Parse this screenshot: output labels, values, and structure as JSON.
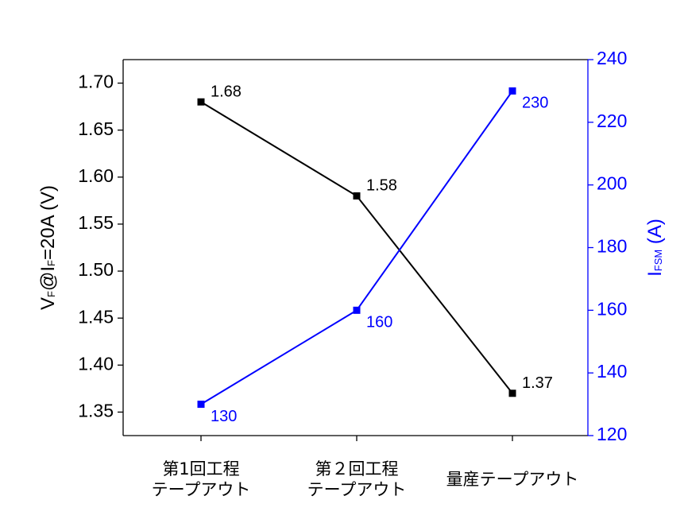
{
  "chart_data": {
    "type": "line",
    "categories": [
      "第1回工程\nテープアウト",
      "第２回工程\nテープアウト",
      "量産テープアウト"
    ],
    "ylabel_parts": [
      {
        "text": "V"
      },
      {
        "text": "F",
        "sub": true
      },
      {
        "text": "@I"
      },
      {
        "text": "F",
        "sub": true
      },
      {
        "text": "=20A (V)"
      }
    ],
    "y2label_parts": [
      {
        "text": "I"
      },
      {
        "text": "FSM",
        "sub": true
      },
      {
        "text": " (A)"
      }
    ],
    "ylim": [
      1.325,
      1.725
    ],
    "yticks": [
      {
        "value": 1.35,
        "label": "1.35"
      },
      {
        "value": 1.4,
        "label": "1.40"
      },
      {
        "value": 1.45,
        "label": "1.45"
      },
      {
        "value": 1.5,
        "label": "1.50"
      },
      {
        "value": 1.55,
        "label": "1.55"
      },
      {
        "value": 1.6,
        "label": "1.60"
      },
      {
        "value": 1.65,
        "label": "1.65"
      },
      {
        "value": 1.7,
        "label": "1.70"
      }
    ],
    "y2lim": [
      120,
      240
    ],
    "y2ticks": [
      120,
      140,
      160,
      180,
      200,
      220,
      240
    ],
    "y2color": "#0000ff",
    "series": [
      {
        "name": "VF",
        "color": "#000000",
        "values": [
          1.68,
          1.58,
          1.37
        ]
      },
      {
        "name": "IFSM",
        "color": "#0000ff",
        "axis": "y2",
        "values": [
          130,
          160,
          230
        ]
      }
    ]
  }
}
